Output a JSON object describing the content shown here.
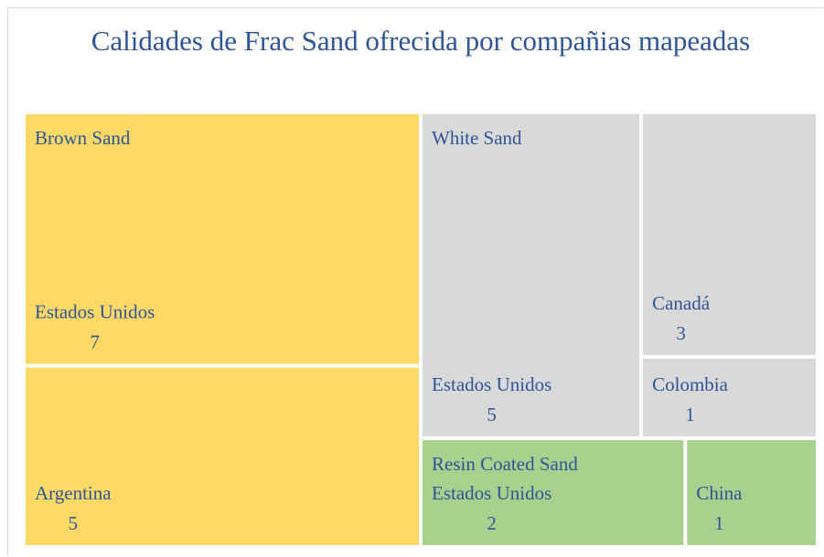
{
  "chart_data": {
    "type": "treemap",
    "title": "Calidades de Frac Sand ofrecida por compañias mapeadas",
    "groups": [
      {
        "name": "Brown Sand",
        "color": "#FFD966",
        "children": [
          {
            "name": "Estados Unidos",
            "value": 7
          },
          {
            "name": "Argentina",
            "value": 5
          }
        ]
      },
      {
        "name": "White Sand",
        "color": "#D9D9D9",
        "children": [
          {
            "name": "Estados Unidos",
            "value": 5
          },
          {
            "name": "Canadá",
            "value": 3
          },
          {
            "name": "Colombia",
            "value": 1
          }
        ]
      },
      {
        "name": "Resin Coated Sand",
        "color": "#A9D18E",
        "children": [
          {
            "name": "Estados Unidos",
            "value": 2
          },
          {
            "name": "China",
            "value": 1
          }
        ]
      }
    ]
  }
}
